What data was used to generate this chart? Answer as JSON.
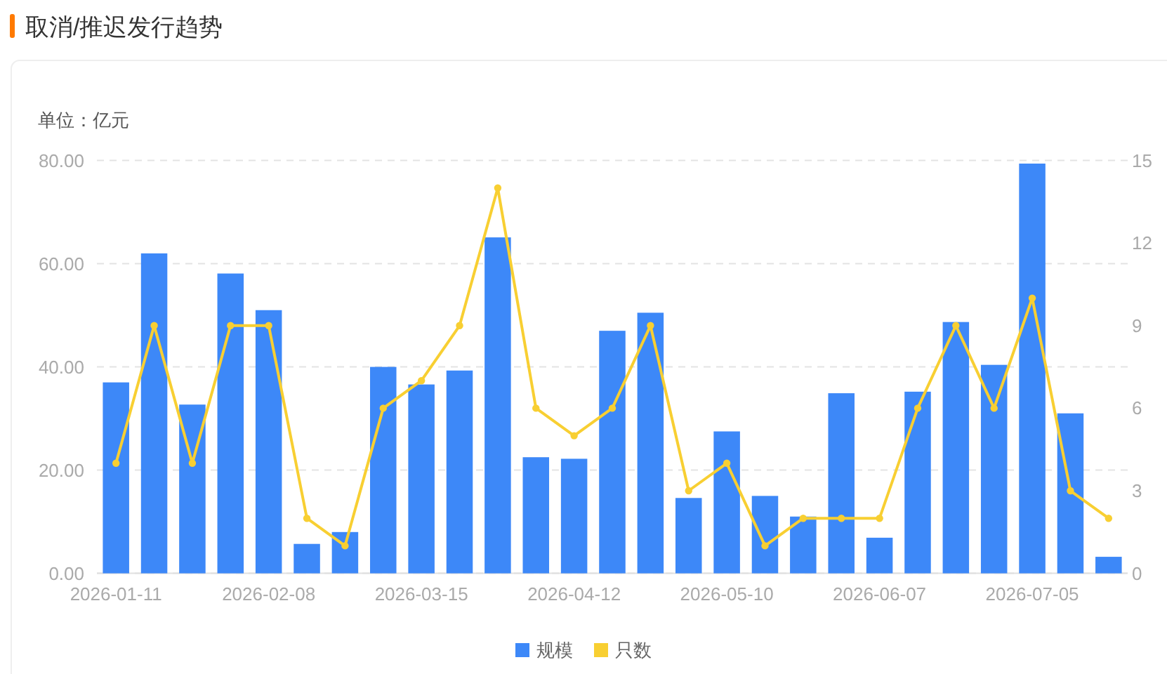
{
  "chart_data": {
    "type": "bar",
    "title": "取消/推迟发行趋势",
    "ylabel": "单位：亿元",
    "categories": [
      "2026-01-11",
      null,
      null,
      null,
      "2026-02-08",
      null,
      null,
      null,
      "2026-03-15",
      null,
      null,
      null,
      "2026-04-12",
      null,
      null,
      null,
      "2026-05-10",
      null,
      null,
      null,
      "2026-06-07",
      null,
      null,
      null,
      "2026-07-05",
      null,
      null
    ],
    "series": [
      {
        "name": "规模",
        "color": "#3d88f8",
        "values": [
          37.0,
          62.0,
          32.7,
          58.1,
          51.0,
          5.7,
          8.0,
          40.0,
          36.6,
          39.3,
          65.1,
          22.5,
          22.2,
          47.0,
          50.5,
          14.6,
          27.5,
          15.0,
          11.0,
          34.9,
          6.9,
          35.2,
          48.7,
          40.4,
          79.4,
          31.0,
          3.2
        ]
      },
      {
        "name": "只数",
        "type": "line",
        "axis": "y2",
        "color": "#f8cf32",
        "values": [
          4,
          9,
          4,
          9,
          9,
          2,
          1,
          6,
          7,
          9,
          14,
          6,
          5,
          6,
          9,
          3,
          4,
          1,
          2,
          2,
          2,
          6,
          9,
          6,
          10,
          3,
          2
        ]
      }
    ],
    "ylim": [
      0,
      80
    ],
    "yticks": [
      {
        "value": 0,
        "label": "0.00"
      },
      {
        "value": 20,
        "label": "20.00"
      },
      {
        "value": 40,
        "label": "40.00"
      },
      {
        "value": 60,
        "label": "60.00"
      },
      {
        "value": 80,
        "label": "80.00"
      }
    ],
    "y2lim": [
      0,
      15
    ],
    "y2ticks": [
      0,
      3,
      6,
      9,
      12,
      15
    ],
    "grid": "y",
    "legend": "bottom",
    "marker": "circle",
    "line_style": "solid"
  }
}
